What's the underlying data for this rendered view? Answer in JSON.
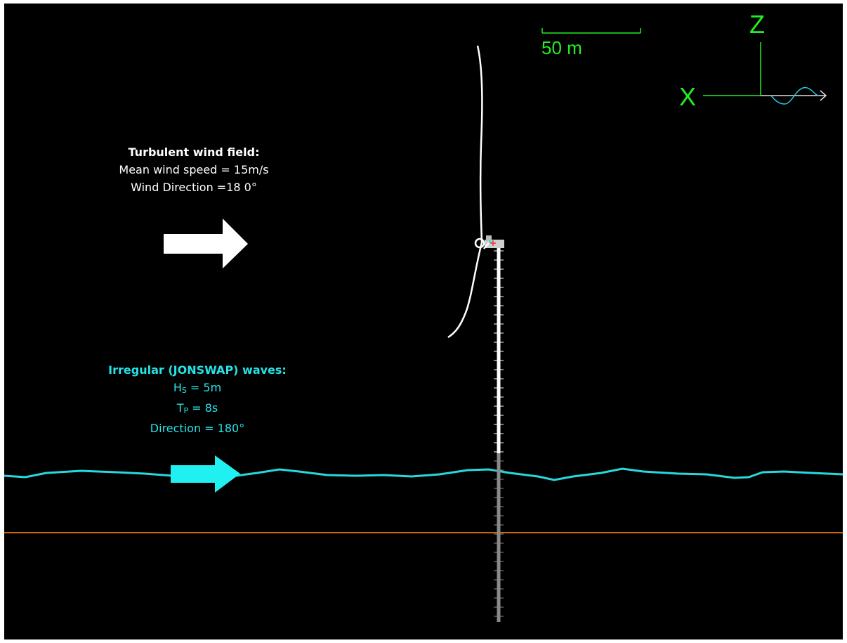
{
  "wind": {
    "title": "Turbulent wind field:",
    "line1": "Mean wind speed = 15m/s",
    "line2": "Wind Direction =18 0°"
  },
  "waves": {
    "title": "Irregular (JONSWAP) waves:",
    "hs_sym": "H",
    "hs_sub": "S",
    "hs_val": " = 5m",
    "tp_sym": "T",
    "tp_sub": "P",
    "tp_val": " = 8s",
    "direction": "Direction = 180°"
  },
  "scale_bar": {
    "label": "50 m"
  },
  "axes": {
    "z_label": "Z",
    "x_label": "X"
  },
  "colors": {
    "background": "#000000",
    "wind_arrow": "#ffffff",
    "wave_arrow": "#21f0f0",
    "sea_surface": "#26d9dc",
    "seabed": "#c8680c",
    "axes_green": "#22ee22",
    "tower_above_water": "#ffffff",
    "tower_below_water": "#8a8a8a"
  }
}
